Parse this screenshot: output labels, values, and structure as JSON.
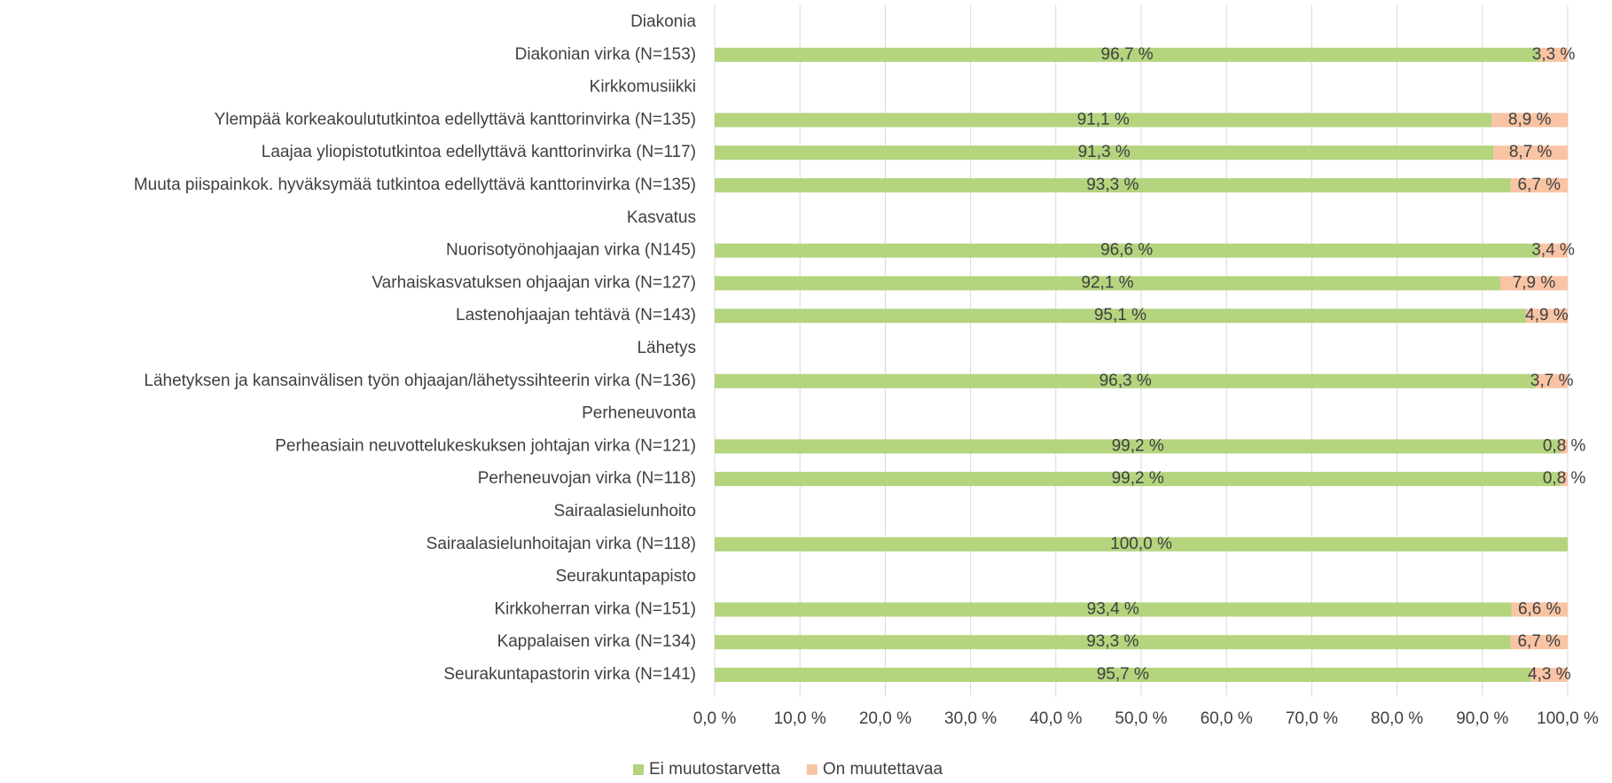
{
  "chart_data": {
    "type": "stacked-bar-horizontal",
    "categories": [
      "Diakonia",
      "Diakonian virka (N=153)",
      "Kirkkomusiikki",
      "Ylempää korkeakoulututkintoa edellyttävä kanttorinvirka (N=135)",
      "Laajaa yliopistotutkintoa edellyttävä kanttorinvirka (N=117)",
      "Muuta piispainkok. hyväksymää tutkintoa edellyttävä kanttorinvirka (N=135)",
      "Kasvatus",
      "Nuorisotyönohjaajan virka (N145)",
      "Varhaiskasvatuksen ohjaajan virka (N=127)",
      "Lastenohjaajan tehtävä (N=143)",
      "Lähetys",
      "Lähetyksen ja kansainvälisen työn ohjaajan/lähetyssihteerin virka (N=136)",
      "Perheneuvonta",
      "Perheasiain neuvottelukeskuksen johtajan virka (N=121)",
      "Perheneuvojan virka (N=118)",
      "Sairaalasielunhoito",
      "Sairaalasielunhoitajan virka (N=118)",
      "Seurakuntapapisto",
      "Kirkkoherran virka (N=151)",
      "Kappalaisen virka (N=134)",
      "Seurakuntapastorin virka (N=141)"
    ],
    "series": [
      {
        "name": "Ei muutostarvetta",
        "color": "#b4d47e",
        "values": [
          null,
          96.7,
          null,
          91.1,
          91.3,
          93.3,
          null,
          96.6,
          92.1,
          95.1,
          null,
          96.3,
          null,
          99.2,
          99.2,
          null,
          100.0,
          null,
          93.4,
          93.3,
          95.7
        ],
        "value_labels": [
          null,
          "96,7 %",
          null,
          "91,1 %",
          "91,3 %",
          "93,3 %",
          null,
          "96,6 %",
          "92,1 %",
          "95,1 %",
          null,
          "96,3 %",
          null,
          "99,2 %",
          "99,2 %",
          null,
          "100,0 %",
          null,
          "93,4 %",
          "93,3 %",
          "95,7 %"
        ]
      },
      {
        "name": "On muutettavaa",
        "color": "#f8c4a4",
        "values": [
          null,
          3.3,
          null,
          8.9,
          8.7,
          6.7,
          null,
          3.4,
          7.9,
          4.9,
          null,
          3.7,
          null,
          0.8,
          0.8,
          null,
          0,
          null,
          6.6,
          6.7,
          4.3
        ],
        "value_labels": [
          null,
          "3,3 %",
          null,
          "8,9 %",
          "8,7 %",
          "6,7 %",
          null,
          "3,4 %",
          "7,9 %",
          "4,9 %",
          null,
          "3,7 %",
          null,
          "0,8 %",
          "0,8 %",
          null,
          null,
          null,
          "6,6 %",
          "6,7 %",
          "4,3 %"
        ]
      }
    ],
    "xlim": [
      0,
      100
    ],
    "xticks": [
      {
        "value": 0,
        "label": "0,0 %"
      },
      {
        "value": 10,
        "label": "10,0 %"
      },
      {
        "value": 20,
        "label": "20,0 %"
      },
      {
        "value": 30,
        "label": "30,0 %"
      },
      {
        "value": 40,
        "label": "40,0 %"
      },
      {
        "value": 50,
        "label": "50,0 %"
      },
      {
        "value": 60,
        "label": "60,0 %"
      },
      {
        "value": 70,
        "label": "70,0 %"
      },
      {
        "value": 80,
        "label": "80,0 %"
      },
      {
        "value": 90,
        "label": "90,0 %"
      },
      {
        "value": 100,
        "label": "100,0 %"
      }
    ],
    "grid": true,
    "legend": "bottom"
  }
}
